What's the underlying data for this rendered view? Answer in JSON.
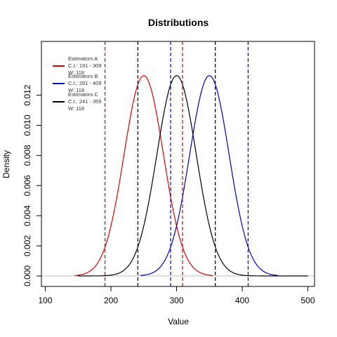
{
  "chart_data": {
    "type": "line",
    "title": "Distributions",
    "xlabel": "Value",
    "ylabel": "Density",
    "xlim": [
      100,
      500
    ],
    "ylim": [
      0,
      0.0135
    ],
    "x_ticks": [
      100,
      200,
      300,
      400,
      500
    ],
    "y_ticks": [
      0.0,
      0.002,
      0.004,
      0.006,
      0.008,
      0.01,
      0.012
    ],
    "y_tick_labels": [
      "0.000",
      "0.002",
      "0.004",
      "0.006",
      "0.008",
      "0.010",
      "0.012"
    ],
    "grid": false,
    "legend_position": "top-left",
    "baseline_color": "#bebebe",
    "series": [
      {
        "name": "Estimators A",
        "ci_label": "C.I.: 191 - 309",
        "width_label": "W: 118",
        "color": "#dd0000",
        "mean": 250,
        "sd": 30,
        "x_range": [
          145,
          355
        ],
        "ci": [
          191,
          309
        ]
      },
      {
        "name": "Estimators B",
        "ci_label": "C.I.: 291 - 409",
        "width_label": "W: 118",
        "color": "#0000cc",
        "mean": 350,
        "sd": 30,
        "x_range": [
          245,
          455
        ],
        "ci": [
          291,
          409
        ]
      },
      {
        "name": "Estimators C",
        "ci_label": "C.I.: 241 - 359",
        "width_label": "W: 118",
        "color": "#000000",
        "mean": 300,
        "sd": 30,
        "x_range": [
          150,
          500
        ],
        "ci": [
          241,
          359
        ]
      }
    ]
  }
}
